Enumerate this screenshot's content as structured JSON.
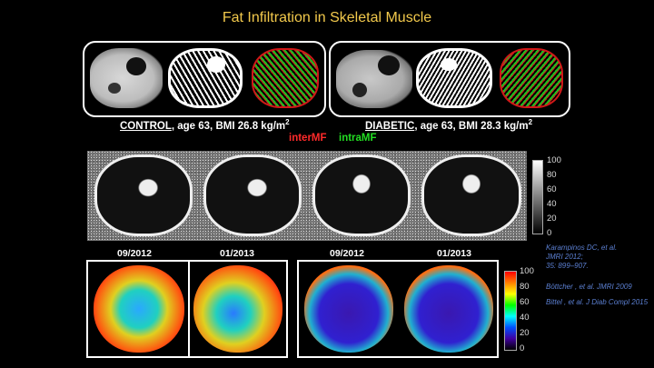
{
  "title": "Fat Infiltration in Skeletal Muscle",
  "control": {
    "label": "CONTROL",
    "desc": ", age 63, BMI 26.8 kg/m",
    "sup": "2"
  },
  "diabetic": {
    "label": "DIABETIC",
    "desc": ", age 63, BMI 28.3 kg/m",
    "sup": "2"
  },
  "legend": {
    "inter": "interMF",
    "intra": "intraMF",
    "inter_color": "#ff2a2a",
    "intra_color": "#22dd22"
  },
  "dates": [
    "09/2012",
    "01/2013",
    "09/2012",
    "01/2013"
  ],
  "gray_scale_ticks": [
    "100",
    "80",
    "60",
    "40",
    "20",
    "0"
  ],
  "color_scale_ticks": [
    "100",
    "80",
    "60",
    "40",
    "20",
    "0"
  ],
  "references": [
    "Karampinos DC, et al.",
    "JMRI 2012;",
    "35: 899–907.",
    "Böttcher , et al. JMRI 2009",
    "Bittel , et al. J Diab Compl 2015"
  ],
  "colors": {
    "title": "#f2c94c",
    "reference": "#5b7fd1"
  }
}
